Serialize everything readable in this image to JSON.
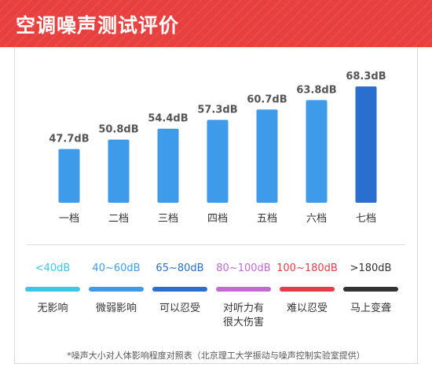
{
  "header": {
    "title": "空调噪声测试评价"
  },
  "chart_data": {
    "type": "bar",
    "categories": [
      "一档",
      "二档",
      "三档",
      "四档",
      "五档",
      "六档",
      "七档"
    ],
    "values": [
      47.7,
      50.8,
      54.4,
      57.3,
      60.7,
      63.8,
      68.3
    ],
    "value_labels": [
      "47.7dB",
      "50.8dB",
      "54.4dB",
      "57.3dB",
      "60.7dB",
      "63.8dB",
      "68.3dB"
    ],
    "unit": "dB",
    "ylim": [
      30,
      70
    ],
    "colors": [
      "#3d9be9",
      "#3d9be9",
      "#3d9be9",
      "#3d9be9",
      "#3d9be9",
      "#3d9be9",
      "#2a6fcf"
    ],
    "grid": false
  },
  "legend": [
    {
      "range": "<40dB",
      "effect": [
        "无影响"
      ],
      "color": "#3cc6e8"
    },
    {
      "range": "40~60dB",
      "effect": [
        "微弱影响"
      ],
      "color": "#3d9be9"
    },
    {
      "range": "65~80dB",
      "effect": [
        "可以忍受"
      ],
      "color": "#2a6fcf"
    },
    {
      "range": "80~100dB",
      "effect": [
        "对听力有",
        "很大伤害"
      ],
      "color": "#c26ad0"
    },
    {
      "range": "100~180dB",
      "effect": [
        "难以忍受"
      ],
      "color": "#e23e4a"
    },
    {
      "range": ">180dB",
      "effect": [
        "马上变聋"
      ],
      "color": "#333333"
    }
  ],
  "footnote": "*噪声大小对人体影响程度对照表（北京理工大学振动与噪声控制实验室提供）"
}
